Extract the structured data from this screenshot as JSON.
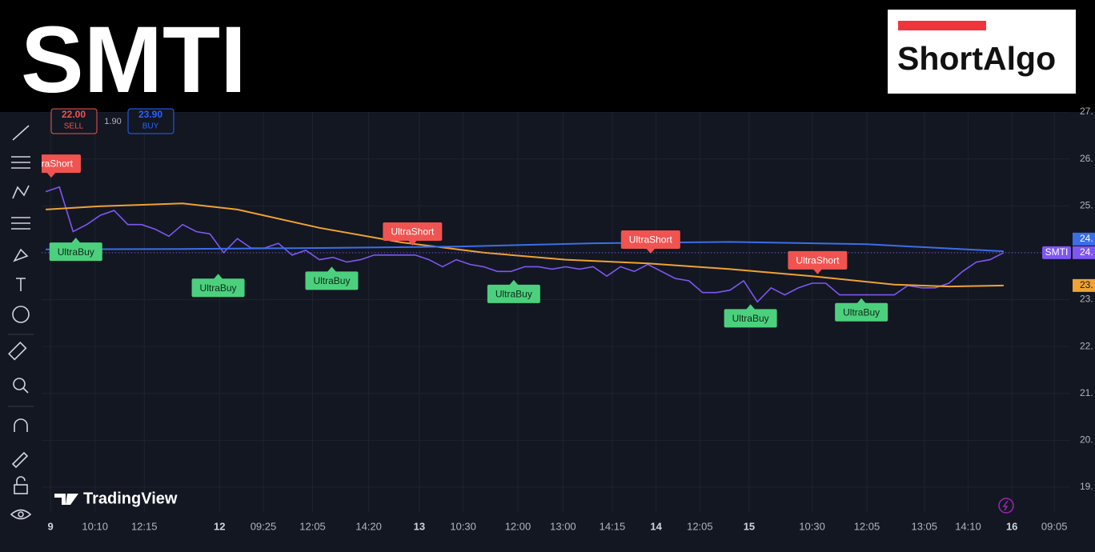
{
  "header": {
    "title": "SMTI",
    "logo": "ShortAlgo"
  },
  "order_panel": {
    "sell_price": "22.00",
    "sell": "SELL",
    "spread": "1.90",
    "buy_price": "23.90",
    "buy": "BUY"
  },
  "watermark": "TradingView",
  "chart_data": {
    "type": "line",
    "x": [
      0,
      1,
      2,
      3,
      4,
      5,
      6,
      7,
      8,
      9,
      10,
      11,
      12,
      13,
      14,
      15,
      16,
      17,
      18,
      19,
      20,
      21,
      22,
      23,
      24,
      25,
      26,
      27,
      28,
      29,
      30,
      31,
      32,
      33,
      34,
      35,
      36,
      37,
      38,
      39,
      40,
      41,
      42,
      43,
      44,
      45,
      46,
      47,
      48,
      49,
      50,
      51,
      52,
      53,
      54,
      55,
      56,
      57,
      58,
      59,
      60,
      61,
      62,
      63,
      64,
      65,
      66,
      67,
      68,
      69,
      70
    ],
    "series": [
      {
        "name": "SMTI",
        "color": "#7e57f2",
        "last_label": "24.",
        "values": [
          25.3,
          25.4,
          24.45,
          24.6,
          24.8,
          24.9,
          24.6,
          24.6,
          24.5,
          24.35,
          24.6,
          24.45,
          24.4,
          24.0,
          24.3,
          24.1,
          24.1,
          24.2,
          23.95,
          24.05,
          23.85,
          23.9,
          23.8,
          23.85,
          23.95,
          23.95,
          23.95,
          23.95,
          23.85,
          23.7,
          23.85,
          23.75,
          23.7,
          23.6,
          23.6,
          23.7,
          23.7,
          23.65,
          23.7,
          23.65,
          23.7,
          23.5,
          23.7,
          23.6,
          23.75,
          23.6,
          23.45,
          23.4,
          23.15,
          23.15,
          23.2,
          23.4,
          22.95,
          23.25,
          23.1,
          23.25,
          23.35,
          23.35,
          23.1,
          23.1,
          23.1,
          23.1,
          23.1,
          23.3,
          23.25,
          23.25,
          23.35,
          23.6,
          23.8,
          23.85,
          24.0
        ]
      },
      {
        "color": "#f0a232",
        "last_label": "23.",
        "x": [
          0,
          4,
          10,
          14,
          20,
          26,
          32,
          38,
          44,
          50,
          56,
          62,
          66,
          70
        ],
        "values": [
          24.92,
          24.99,
          25.05,
          24.92,
          24.53,
          24.22,
          24.0,
          23.85,
          23.77,
          23.65,
          23.5,
          23.32,
          23.28,
          23.3
        ]
      },
      {
        "color": "#3b6ee8",
        "last_label": "24.",
        "x": [
          0,
          10,
          20,
          30,
          40,
          50,
          60,
          70
        ],
        "values": [
          24.07,
          24.08,
          24.1,
          24.13,
          24.2,
          24.23,
          24.18,
          24.03
        ]
      }
    ],
    "signals": [
      {
        "label": "UltraShort",
        "x": 0.4,
        "y": 25.6
      },
      {
        "label": "UltraBuy",
        "x": 2.2,
        "y": 24.32
      },
      {
        "label": "UltraBuy",
        "x": 12.6,
        "y": 23.55
      },
      {
        "label": "UltraBuy",
        "x": 20.9,
        "y": 23.7
      },
      {
        "label": "UltraShort",
        "x": 26.8,
        "y": 24.15
      },
      {
        "label": "UltraBuy",
        "x": 34.2,
        "y": 23.42
      },
      {
        "label": "UltraShort",
        "x": 44.2,
        "y": 23.98
      },
      {
        "label": "UltraBuy",
        "x": 51.5,
        "y": 22.9
      },
      {
        "label": "UltraShort",
        "x": 56.4,
        "y": 23.54
      },
      {
        "label": "UltraBuy",
        "x": 59.6,
        "y": 23.03
      }
    ],
    "xlim": [
      -0.3,
      74.8
    ],
    "ylim": [
      18.47,
      27.0
    ],
    "xticks": [
      {
        "value": 0.35,
        "label": "9"
      },
      {
        "value": 3.6,
        "label": "10:10"
      },
      {
        "value": 7.2,
        "label": "12:15"
      },
      {
        "value": 12.7,
        "label": "12"
      },
      {
        "value": 15.9,
        "label": "09:25"
      },
      {
        "value": 19.5,
        "label": "12:05"
      },
      {
        "value": 23.6,
        "label": "14:20"
      },
      {
        "value": 27.3,
        "label": "13"
      },
      {
        "value": 30.5,
        "label": "10:30"
      },
      {
        "value": 34.5,
        "label": "12:00"
      },
      {
        "value": 37.8,
        "label": "13:00"
      },
      {
        "value": 41.4,
        "label": "14:15"
      },
      {
        "value": 44.6,
        "label": "14"
      },
      {
        "value": 47.8,
        "label": "12:05"
      },
      {
        "value": 51.4,
        "label": "15"
      },
      {
        "value": 56.0,
        "label": "10:30"
      },
      {
        "value": 60.0,
        "label": "12:05"
      },
      {
        "value": 64.2,
        "label": "13:05"
      },
      {
        "value": 67.4,
        "label": "14:10"
      },
      {
        "value": 70.6,
        "label": "16"
      },
      {
        "value": 73.7,
        "label": "09:05"
      }
    ],
    "yticks": [
      {
        "value": 19,
        "label": "19."
      },
      {
        "value": 20,
        "label": "20."
      },
      {
        "value": 21,
        "label": "21."
      },
      {
        "value": 22,
        "label": "22."
      },
      {
        "value": 23,
        "label": "23."
      },
      {
        "value": 24,
        "label": "24."
      },
      {
        "value": 25,
        "label": "25."
      },
      {
        "value": 26,
        "label": "26."
      },
      {
        "value": 27,
        "label": "27."
      }
    ],
    "grid": true
  }
}
